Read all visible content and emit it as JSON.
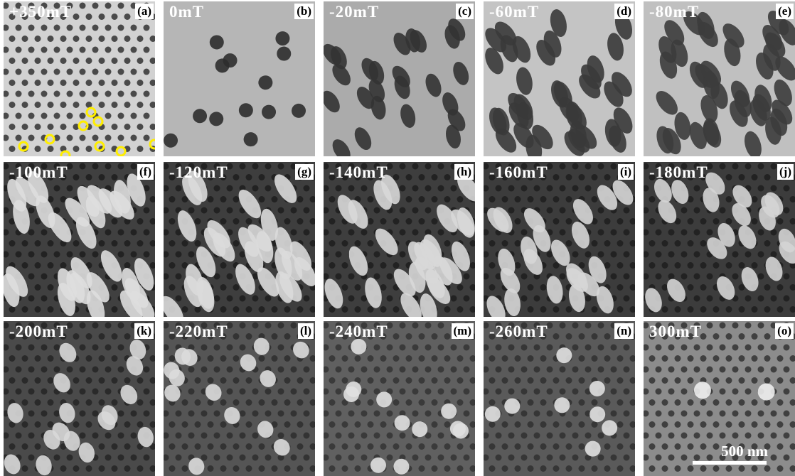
{
  "panels": [
    {
      "field": "+350mT",
      "letter": "(a)"
    },
    {
      "field": "0mT",
      "letter": "(b)"
    },
    {
      "field": "-20mT",
      "letter": "(c)"
    },
    {
      "field": "-60mT",
      "letter": "(d)"
    },
    {
      "field": "-80mT",
      "letter": "(e)"
    },
    {
      "field": "-100mT",
      "letter": "(f)"
    },
    {
      "field": "-120mT",
      "letter": "(g)"
    },
    {
      "field": "-140mT",
      "letter": "(h)"
    },
    {
      "field": "-160mT",
      "letter": "(i)"
    },
    {
      "field": "-180mT",
      "letter": "(j)"
    },
    {
      "field": "-200mT",
      "letter": "(k)"
    },
    {
      "field": "-220mT",
      "letter": "(l)"
    },
    {
      "field": "-240mT",
      "letter": "(m)"
    },
    {
      "field": "-260mT",
      "letter": "(n)"
    },
    {
      "field": "300mT",
      "letter": "(o)"
    }
  ],
  "scale_bar": "500 nm"
}
